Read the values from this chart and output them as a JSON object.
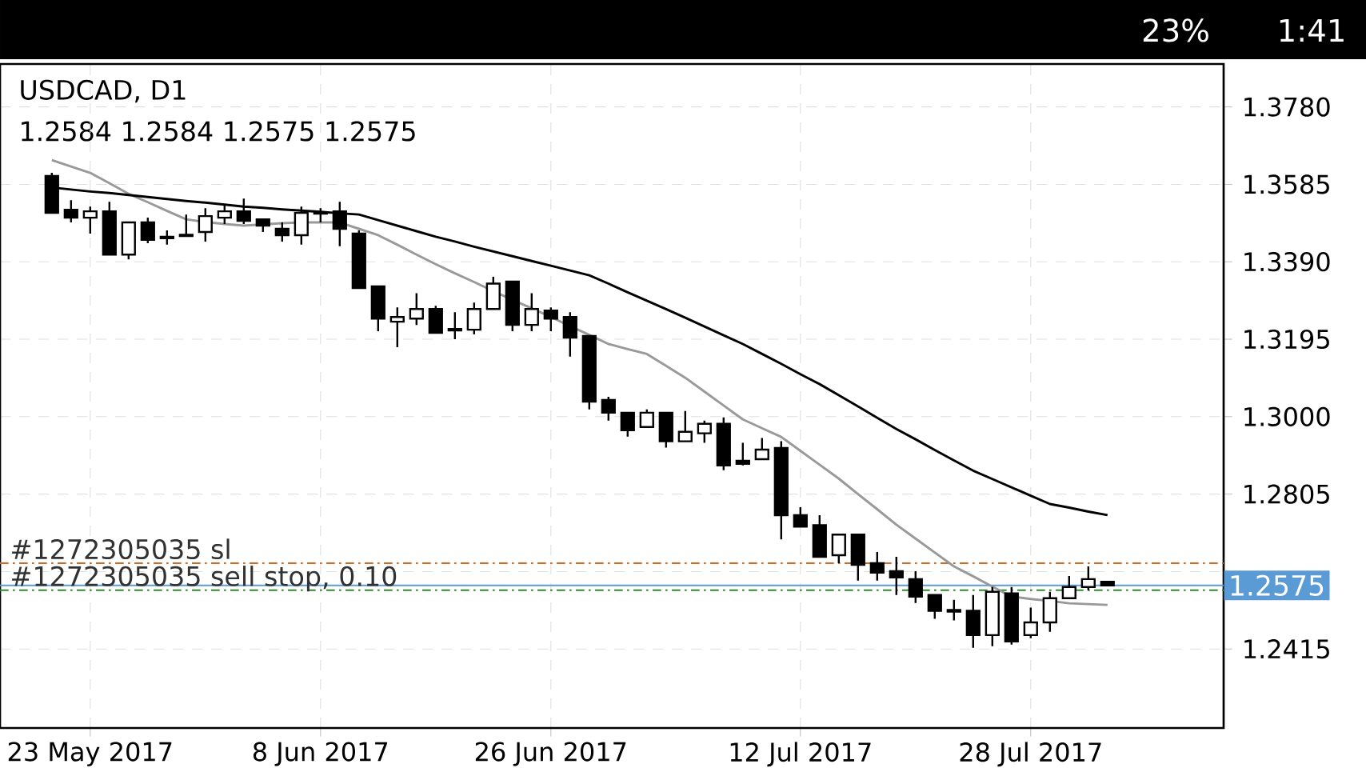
{
  "chart_data": {
    "type": "candlestick",
    "title": "USDCAD, D1",
    "subtitle": "1.2584 1.2584 1.2575 1.2575",
    "categories": [
      null,
      null,
      "23 May 2017",
      null,
      null,
      null,
      null,
      null,
      null,
      null,
      null,
      null,
      null,
      null,
      "8 Jun 2017",
      null,
      null,
      null,
      null,
      null,
      null,
      null,
      null,
      null,
      null,
      null,
      "26 Jun 2017",
      null,
      null,
      null,
      null,
      null,
      null,
      null,
      null,
      null,
      null,
      null,
      null,
      "12 Jul 2017",
      null,
      null,
      null,
      null,
      null,
      null,
      null,
      null,
      null,
      null,
      null,
      "28 Jul 2017",
      null,
      null,
      null,
      null
    ],
    "ohlc": [
      [
        1.3606,
        1.3614,
        1.3513,
        1.3513
      ],
      [
        1.3521,
        1.3545,
        1.3489,
        1.3501
      ],
      [
        1.3501,
        1.3529,
        1.3461,
        1.3517
      ],
      [
        1.3517,
        1.3541,
        1.3408,
        1.3408
      ],
      [
        1.3408,
        1.3489,
        1.3396,
        1.3489
      ],
      [
        1.3489,
        1.3501,
        1.3437,
        1.3445
      ],
      [
        1.3453,
        1.3469,
        1.3433,
        1.3449
      ],
      [
        1.3455,
        1.3509,
        1.3455,
        1.3458
      ],
      [
        1.3465,
        1.3525,
        1.3441,
        1.3505
      ],
      [
        1.3501,
        1.3533,
        1.3485,
        1.3517
      ],
      [
        1.3517,
        1.3549,
        1.3485,
        1.3493
      ],
      [
        1.3497,
        1.3497,
        1.3465,
        1.3481
      ],
      [
        1.3473,
        1.3489,
        1.3441,
        1.3457
      ],
      [
        1.3457,
        1.3529,
        1.3433,
        1.3513
      ],
      [
        1.3511,
        1.3525,
        1.3489,
        1.3515
      ],
      [
        1.3517,
        1.3541,
        1.3429,
        1.3473
      ],
      [
        1.3461,
        1.3469,
        1.3324,
        1.3324
      ],
      [
        1.3328,
        1.3328,
        1.3215,
        1.3247
      ],
      [
        1.3239,
        1.3275,
        1.3175,
        1.3251
      ],
      [
        1.3247,
        1.3311,
        1.3231,
        1.3271
      ],
      [
        1.3271,
        1.3279,
        1.3211,
        1.3211
      ],
      [
        1.3221,
        1.3263,
        1.3195,
        1.3217
      ],
      [
        1.3219,
        1.3287,
        1.3207,
        1.3271
      ],
      [
        1.3271,
        1.3352,
        1.3271,
        1.3335
      ],
      [
        1.334,
        1.334,
        1.3215,
        1.3231
      ],
      [
        1.3231,
        1.3311,
        1.3215,
        1.3271
      ],
      [
        1.3267,
        1.3275,
        1.3215,
        1.3247
      ],
      [
        1.3251,
        1.3263,
        1.3151,
        1.3199
      ],
      [
        1.3203,
        1.3203,
        1.3018,
        1.3038
      ],
      [
        1.3042,
        1.305,
        1.299,
        1.301
      ],
      [
        1.301,
        1.301,
        1.295,
        1.2966
      ],
      [
        1.2974,
        1.3018,
        1.2974,
        1.301
      ],
      [
        1.301,
        1.301,
        1.2922,
        1.2938
      ],
      [
        1.2938,
        1.3014,
        1.2938,
        1.2962
      ],
      [
        1.2958,
        1.299,
        1.2934,
        1.2982
      ],
      [
        1.2982,
        1.2998,
        1.2865,
        1.2877
      ],
      [
        1.2889,
        1.2934,
        1.2877,
        1.2881
      ],
      [
        1.2893,
        1.2946,
        1.2893,
        1.2917
      ],
      [
        1.2921,
        1.2938,
        1.2691,
        1.2752
      ],
      [
        1.2752,
        1.2772,
        1.2723,
        1.2723
      ],
      [
        1.2727,
        1.2752,
        1.2647,
        1.2647
      ],
      [
        1.2651,
        1.2703,
        1.2631,
        1.2703
      ],
      [
        1.2703,
        1.2703,
        1.2587,
        1.2627
      ],
      [
        1.2631,
        1.2659,
        1.2587,
        1.2607
      ],
      [
        1.2611,
        1.2647,
        1.2551,
        1.2595
      ],
      [
        1.2591,
        1.2611,
        1.2531,
        1.2547
      ],
      [
        1.2551,
        1.2551,
        1.2491,
        1.2511
      ],
      [
        1.2509,
        1.2539,
        1.2487,
        1.2513
      ],
      [
        1.2511,
        1.2551,
        1.2418,
        1.245
      ],
      [
        1.245,
        1.2571,
        1.2422,
        1.2559
      ],
      [
        1.2555,
        1.2571,
        1.2426,
        1.2434
      ],
      [
        1.245,
        1.2519,
        1.2442,
        1.2482
      ],
      [
        1.2482,
        1.2559,
        1.2458,
        1.2543
      ],
      [
        1.2543,
        1.2599,
        1.2543,
        1.2571
      ],
      [
        1.2571,
        1.2623,
        1.2563,
        1.2591
      ],
      [
        1.2584,
        1.2584,
        1.2575,
        1.2575
      ]
    ],
    "series": [
      {
        "type": "line",
        "color": "#999999",
        "values": [
          1.3646,
          1.363,
          1.3614,
          1.3588,
          1.3561,
          1.354,
          1.3518,
          1.3497,
          1.349,
          1.3485,
          1.3481,
          1.3484,
          1.3487,
          1.3489,
          1.3489,
          1.3489,
          1.3473,
          1.3457,
          1.3433,
          1.3408,
          1.3384,
          1.3361,
          1.3339,
          1.3316,
          1.3294,
          1.3273,
          1.3251,
          1.3228,
          1.3206,
          1.3183,
          1.317,
          1.3158,
          1.3128,
          1.3098,
          1.3063,
          1.3028,
          1.2993,
          1.2971,
          1.2949,
          1.2914,
          1.2879,
          1.2844,
          1.2805,
          1.2767,
          1.2728,
          1.2693,
          1.2658,
          1.2623,
          1.2598,
          1.2572,
          1.2547,
          1.2541,
          1.2536,
          1.253,
          1.2528,
          1.2526
        ]
      },
      {
        "type": "line",
        "color": "#000000",
        "values": [
          1.3577,
          1.3572,
          1.3567,
          1.3563,
          1.3558,
          1.3553,
          1.3548,
          1.3543,
          1.3539,
          1.3534,
          1.3529,
          1.3526,
          1.3522,
          1.3519,
          1.3516,
          1.3512,
          1.3509,
          1.3495,
          1.3481,
          1.3467,
          1.3453,
          1.3441,
          1.3428,
          1.3416,
          1.3404,
          1.3392,
          1.338,
          1.3368,
          1.3356,
          1.3335,
          1.3313,
          1.3292,
          1.3271,
          1.3249,
          1.3227,
          1.3205,
          1.3183,
          1.3158,
          1.3133,
          1.3107,
          1.3082,
          1.3054,
          1.3026,
          1.2997,
          1.2969,
          1.2943,
          1.2916,
          1.289,
          1.2864,
          1.2843,
          1.2822,
          1.2801,
          1.278,
          1.2771,
          1.2761,
          1.2752
        ]
      }
    ],
    "ylim": [
      1.2216,
      1.3888
    ],
    "yticks": [
      1.2415,
      {
        "value": 1.261,
        "label": null
      },
      1.2805,
      {
        "value": 1.3,
        "label": "1.3000"
      },
      1.3195,
      {
        "value": 1.339,
        "label": "1.3390"
      },
      1.3585,
      {
        "value": 1.378,
        "label": "1.3780"
      }
    ],
    "grid": true,
    "ref_lines": [
      {
        "axis": "y",
        "value": 1.2631,
        "label": "#1272305035 sl",
        "color": "#d2691e",
        "line_style": "dashdot"
      },
      {
        "axis": "y",
        "value": 1.2575,
        "label": "1.2575",
        "color": "#5b9bd5",
        "line_style": "solid"
      },
      {
        "axis": "y",
        "value": 1.2563,
        "label": "#1272305035 sell stop, 0.10",
        "color": "#2e8b2e",
        "line_style": "dashdot"
      }
    ],
    "annotations": [
      "23%",
      "1:41"
    ]
  }
}
